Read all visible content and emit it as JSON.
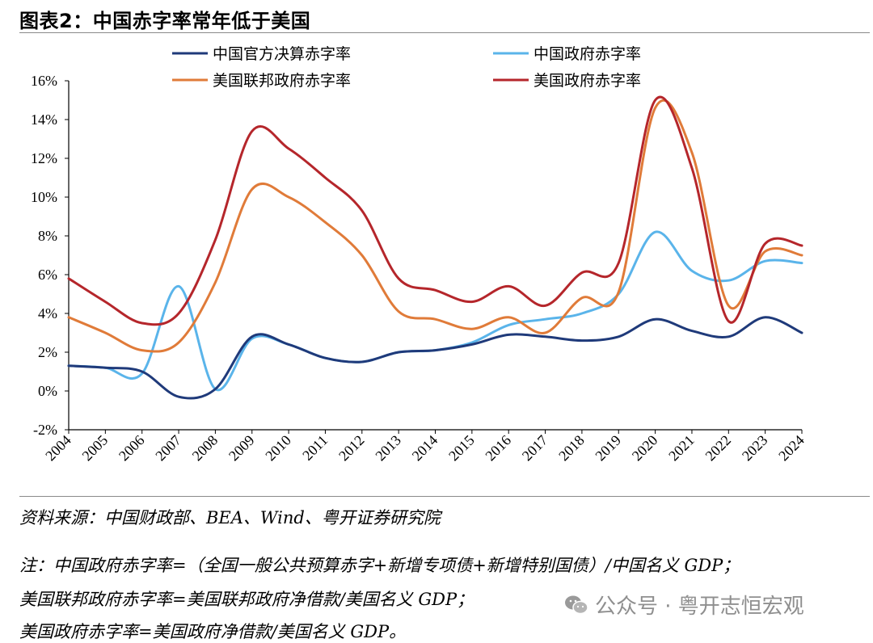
{
  "header": {
    "title": "图表2：中国赤字率常年低于美国"
  },
  "chart_data": {
    "type": "line",
    "x": [
      "2004",
      "2005",
      "2006",
      "2007",
      "2008",
      "2009",
      "2010",
      "2011",
      "2012",
      "2013",
      "2014",
      "2015",
      "2016",
      "2017",
      "2018",
      "2019",
      "2020",
      "2021",
      "2022",
      "2023",
      "2024"
    ],
    "y_ticks": [
      "16%",
      "14%",
      "12%",
      "10%",
      "8%",
      "6%",
      "4%",
      "2%",
      "0%",
      "-2%"
    ],
    "ylim": [
      -2,
      16
    ],
    "grid": false,
    "legend_placement": "top",
    "series": [
      {
        "name": "中国官方决算赤字率",
        "color": "#1f3a7a",
        "values": [
          1.3,
          1.2,
          1.0,
          -0.3,
          0.1,
          2.8,
          2.4,
          1.7,
          1.5,
          2.0,
          2.1,
          2.4,
          2.9,
          2.8,
          2.6,
          2.8,
          3.7,
          3.1,
          2.8,
          3.8,
          3.0
        ]
      },
      {
        "name": "中国政府赤字率",
        "color": "#5ab4ea",
        "values": [
          1.3,
          1.2,
          0.9,
          5.4,
          0.1,
          2.7,
          2.4,
          1.7,
          1.5,
          2.0,
          2.1,
          2.5,
          3.4,
          3.7,
          4.0,
          5.0,
          8.2,
          6.2,
          5.7,
          6.7,
          6.6
        ]
      },
      {
        "name": "美国联邦政府赤字率",
        "color": "#e07b39",
        "values": [
          3.8,
          3.0,
          2.1,
          2.5,
          5.6,
          10.4,
          10.0,
          8.7,
          7.0,
          4.1,
          3.7,
          3.2,
          3.8,
          3.0,
          4.8,
          5.1,
          14.6,
          12.3,
          4.4,
          7.2,
          7.0
        ]
      },
      {
        "name": "美国政府赤字率",
        "color": "#b5262b",
        "values": [
          5.8,
          4.6,
          3.5,
          4.0,
          7.8,
          13.4,
          12.5,
          11.0,
          9.3,
          5.8,
          5.2,
          4.6,
          5.4,
          4.4,
          6.1,
          6.6,
          15.0,
          11.5,
          3.6,
          7.6,
          7.5
        ]
      }
    ]
  },
  "source": "资料来源：中国财政部、BEA、Wind、粤开证券研究院",
  "notes": [
    "注：中国政府赤字率=（全国一般公共预算赤字+新增专项债+新增特别国债）/中国名义 GDP；",
    "美国联邦政府赤字率=美国联邦政府净借款/美国名义 GDP；",
    "美国政府赤字率=美国政府净借款/美国名义 GDP。"
  ],
  "watermark": {
    "text": "公众号 · 粤开志恒宏观",
    "icon": "wechat-icon"
  }
}
